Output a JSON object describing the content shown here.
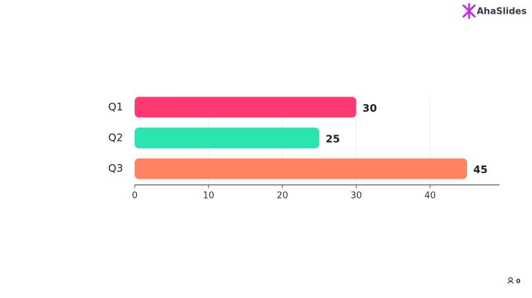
{
  "brand": "AhaSlides",
  "participants": 0,
  "chart_data": {
    "type": "bar",
    "orientation": "horizontal",
    "categories": [
      "Q1",
      "Q2",
      "Q3"
    ],
    "values": [
      30,
      25,
      45
    ],
    "colors": [
      "#ff3a73",
      "#2ae5b0",
      "#ff8361"
    ],
    "xlim": [
      0,
      49.4
    ],
    "xticks": [
      0,
      10,
      20,
      30,
      40
    ],
    "grid": true
  }
}
